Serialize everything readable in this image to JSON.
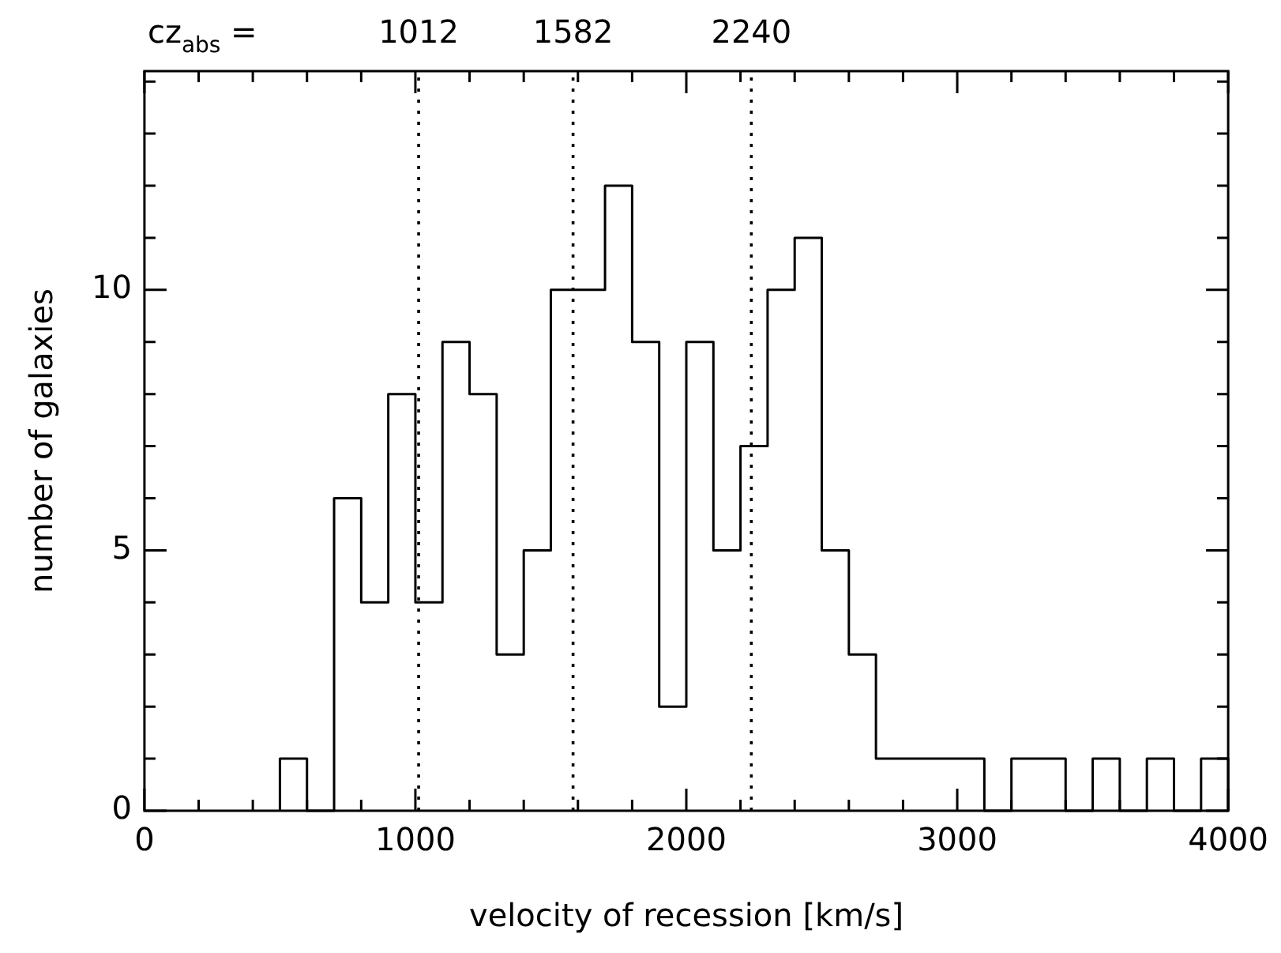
{
  "chart_data": {
    "type": "histogram",
    "xlabel": "velocity of recession [km/s]",
    "ylabel": "number of galaxies",
    "bins": [
      500,
      600,
      700,
      800,
      900,
      1000,
      1100,
      1200,
      1300,
      1400,
      1500,
      1600,
      1700,
      1800,
      1900,
      2000,
      2100,
      2200,
      2300,
      2400,
      2500,
      2600,
      2700,
      2800,
      2900,
      3000,
      3100,
      3200,
      3300,
      3400,
      3500,
      3600,
      3700,
      3800,
      3900,
      4000
    ],
    "values": [
      1,
      0,
      6,
      4,
      8,
      4,
      9,
      8,
      3,
      5,
      10,
      10,
      12,
      9,
      2,
      9,
      5,
      7,
      10,
      11,
      5,
      3,
      1,
      1,
      1,
      1,
      0,
      1,
      1,
      0,
      1,
      0,
      1,
      0,
      1
    ],
    "color": "#000000",
    "xlim": [
      0,
      4000
    ],
    "xticks": [
      0,
      {
        "value": 200,
        "label": null
      },
      {
        "value": 400,
        "label": null
      },
      {
        "value": 600,
        "label": null
      },
      {
        "value": 800,
        "label": null
      },
      1000,
      {
        "value": 1200,
        "label": null
      },
      {
        "value": 1400,
        "label": null
      },
      {
        "value": 1600,
        "label": null
      },
      {
        "value": 1800,
        "label": null
      },
      2000,
      {
        "value": 2200,
        "label": null
      },
      {
        "value": 2400,
        "label": null
      },
      {
        "value": 2600,
        "label": null
      },
      {
        "value": 2800,
        "label": null
      },
      3000,
      {
        "value": 3200,
        "label": null
      },
      {
        "value": 3400,
        "label": null
      },
      {
        "value": 3600,
        "label": null
      },
      {
        "value": 3800,
        "label": null
      },
      4000
    ],
    "ylim": [
      0,
      14.2
    ],
    "yticks": [
      0,
      {
        "value": 1,
        "label": null
      },
      {
        "value": 2,
        "label": null
      },
      {
        "value": 3,
        "label": null
      },
      {
        "value": 4,
        "label": null
      },
      5,
      {
        "value": 6,
        "label": null
      },
      {
        "value": 7,
        "label": null
      },
      {
        "value": 8,
        "label": null
      },
      {
        "value": 9,
        "label": null
      },
      10,
      {
        "value": 11,
        "label": null
      },
      {
        "value": 12,
        "label": null
      },
      {
        "value": 13,
        "label": null
      },
      {
        "value": 14,
        "label": null
      }
    ],
    "ref_lines": [
      {
        "axis": "x",
        "value": 1012,
        "label": "1012",
        "line_style": "dotted"
      },
      {
        "axis": "x",
        "value": 1582,
        "label": "1582",
        "line_style": "dotted"
      },
      {
        "axis": "x",
        "value": 2240,
        "label": "2240",
        "line_style": "dotted"
      }
    ],
    "annotations": [
      "cz$_{abs}$ ="
    ],
    "grid": false,
    "legend": false
  }
}
